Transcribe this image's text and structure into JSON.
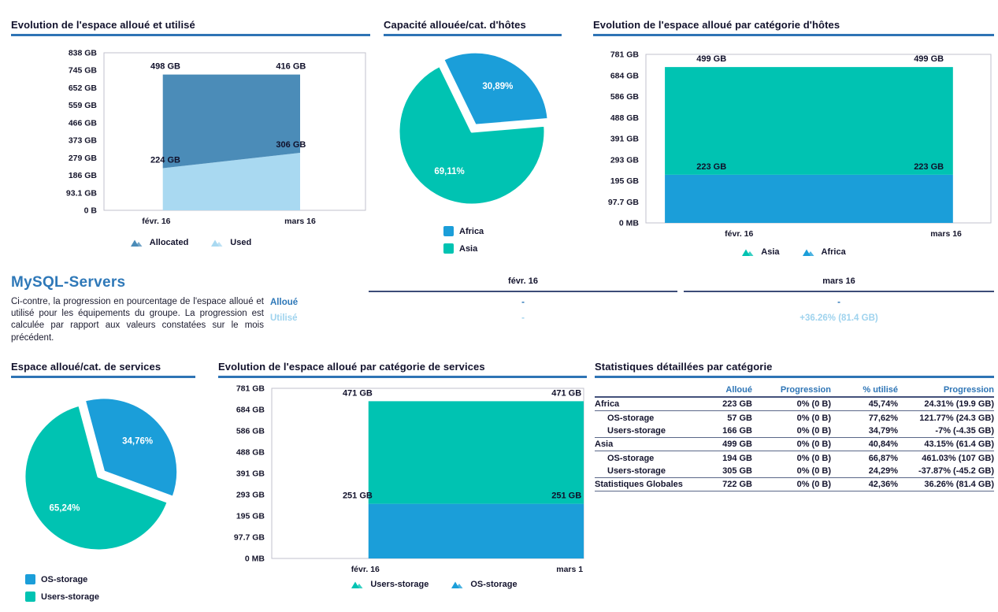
{
  "colors": {
    "teal": "#00c3b2",
    "blue": "#1b9ed9",
    "steel_blue": "#4b8cb8",
    "light_blue": "#a9d9f1",
    "heading_blue": "#2e78b8",
    "accent_rule": "#2e74b5",
    "pale_blue_text": "#9fd3ee",
    "dark_text": "#14142e"
  },
  "chart_data": [
    {
      "type": "area",
      "title": "Evolution de l'espace alloué et utilisé",
      "stacked": true,
      "grid": false,
      "categories": [
        "févr. 16",
        "mars 16"
      ],
      "series": [
        {
          "name": "Used",
          "values": [
            224,
            306
          ],
          "labels": [
            "224 GB",
            "306 GB"
          ],
          "color": "#a9d9f1"
        },
        {
          "name": "Allocated",
          "values": [
            498,
            416
          ],
          "labels": [
            "498 GB",
            "416 GB"
          ],
          "color": "#4b8cb8"
        }
      ],
      "legend": [
        {
          "label": "Allocated",
          "color": "#4b8cb8"
        },
        {
          "label": "Used",
          "color": "#a9d9f1"
        }
      ],
      "ylim": [
        0,
        838
      ],
      "yticks": [
        "838 GB",
        "745 GB",
        "652 GB",
        "559 GB",
        "466 GB",
        "373 GB",
        "279 GB",
        "186 GB",
        "93.1 GB",
        "0 B"
      ],
      "legend_position": "bottom"
    },
    {
      "type": "pie",
      "title": "Capacité allouée/cat. d'hôtes",
      "start_angle": -26,
      "slices": [
        {
          "label": "Africa",
          "value_pct": 30.89,
          "display": "30,89%",
          "color": "#1b9ed9",
          "exploded": true
        },
        {
          "label": "Asia",
          "value_pct": 69.11,
          "display": "69,11%",
          "color": "#00c3b2",
          "exploded": false
        }
      ],
      "legend_position": "bottom-left"
    },
    {
      "type": "area",
      "title": "Evolution de l'espace alloué par catégorie d'hôtes",
      "stacked": true,
      "grid": false,
      "categories": [
        "févr. 16",
        "mars 16"
      ],
      "series": [
        {
          "name": "Africa",
          "values": [
            223,
            223
          ],
          "labels": [
            "223 GB",
            "223 GB"
          ],
          "color": "#1b9ed9"
        },
        {
          "name": "Asia",
          "values": [
            499,
            499
          ],
          "labels": [
            "499 GB",
            "499 GB"
          ],
          "color": "#00c3b2"
        }
      ],
      "legend": [
        {
          "label": "Asia",
          "color": "#00c3b2"
        },
        {
          "label": "Africa",
          "color": "#1b9ed9"
        }
      ],
      "ylim": [
        0,
        781
      ],
      "yticks": [
        "781 GB",
        "684 GB",
        "586 GB",
        "488 GB",
        "391 GB",
        "293 GB",
        "195 GB",
        "97.7 GB",
        "0 MB"
      ],
      "legend_position": "bottom"
    },
    {
      "type": "pie",
      "title": "Espace alloué/cat. de services",
      "start_angle": -15,
      "slices": [
        {
          "label": "OS-storage",
          "value_pct": 34.76,
          "display": "34,76%",
          "color": "#1b9ed9",
          "exploded": true
        },
        {
          "label": "Users-storage",
          "value_pct": 65.24,
          "display": "65,24%",
          "color": "#00c3b2",
          "exploded": false
        }
      ],
      "legend_position": "bottom-left"
    },
    {
      "type": "area",
      "title": "Evolution de l'espace alloué par catégorie de services",
      "stacked": true,
      "grid": false,
      "categories": [
        "févr. 16",
        "mars 1"
      ],
      "series": [
        {
          "name": "OS-storage",
          "values": [
            251,
            251
          ],
          "labels": [
            "251 GB",
            "251 GB"
          ],
          "color": "#1b9ed9"
        },
        {
          "name": "Users-storage",
          "values": [
            471,
            471
          ],
          "labels": [
            "471 GB",
            "471 GB"
          ],
          "color": "#00c3b2"
        }
      ],
      "legend": [
        {
          "label": "Users-storage",
          "color": "#00c3b2"
        },
        {
          "label": "OS-storage",
          "color": "#1b9ed9"
        }
      ],
      "ylim": [
        0,
        781
      ],
      "yticks": [
        "781 GB",
        "684 GB",
        "586 GB",
        "488 GB",
        "391 GB",
        "293 GB",
        "195 GB",
        "97.7 GB",
        "0 MB"
      ],
      "legend_position": "bottom"
    }
  ],
  "section": {
    "title": "MySQL-Servers",
    "description": "Ci-contre, la progression en pourcentage de l'espace alloué et utilisé pour les équipements du groupe. La progression est calculée par rapport aux valeurs constatées sur le mois précédent.",
    "comparison": {
      "columns": [
        "févr. 16",
        "mars 16"
      ],
      "rows": [
        {
          "label": "Alloué",
          "values": [
            "-",
            "-"
          ],
          "color": "#2e78b8"
        },
        {
          "label": "Utilisé",
          "values": [
            "-",
            "+36.26% (81.4 GB)"
          ],
          "color": "#9fd3ee"
        }
      ]
    }
  },
  "stats_table": {
    "title": "Statistiques détaillées par catégorie",
    "columns": [
      "",
      "Alloué",
      "Progression",
      "% utilisé",
      "Progression"
    ],
    "rows": [
      {
        "label": "Africa",
        "indent": false,
        "bold": false,
        "cells": [
          "223 GB",
          "0% (0 B)",
          "45,74%",
          "24.31% (19.9 GB)"
        ]
      },
      {
        "label": "OS-storage",
        "indent": true,
        "bold": false,
        "cells": [
          "57 GB",
          "0% (0 B)",
          "77,62%",
          "121.77% (24.3 GB)"
        ]
      },
      {
        "label": "Users-storage",
        "indent": true,
        "bold": false,
        "cells": [
          "166 GB",
          "0% (0 B)",
          "34,79%",
          "-7% (-4.35 GB)"
        ]
      },
      {
        "label": "Asia",
        "indent": false,
        "bold": false,
        "cells": [
          "499 GB",
          "0% (0 B)",
          "40,84%",
          "43.15% (61.4 GB)"
        ]
      },
      {
        "label": "OS-storage",
        "indent": true,
        "bold": false,
        "cells": [
          "194 GB",
          "0% (0 B)",
          "66,87%",
          "461.03% (107 GB)"
        ]
      },
      {
        "label": "Users-storage",
        "indent": true,
        "bold": false,
        "cells": [
          "305 GB",
          "0% (0 B)",
          "24,29%",
          "-37.87% (-45.2 GB)"
        ]
      },
      {
        "label": "Statistiques Globales",
        "indent": false,
        "bold": true,
        "cells": [
          "722 GB",
          "0% (0 B)",
          "42,36%",
          "36.26% (81.4 GB)"
        ]
      }
    ]
  }
}
